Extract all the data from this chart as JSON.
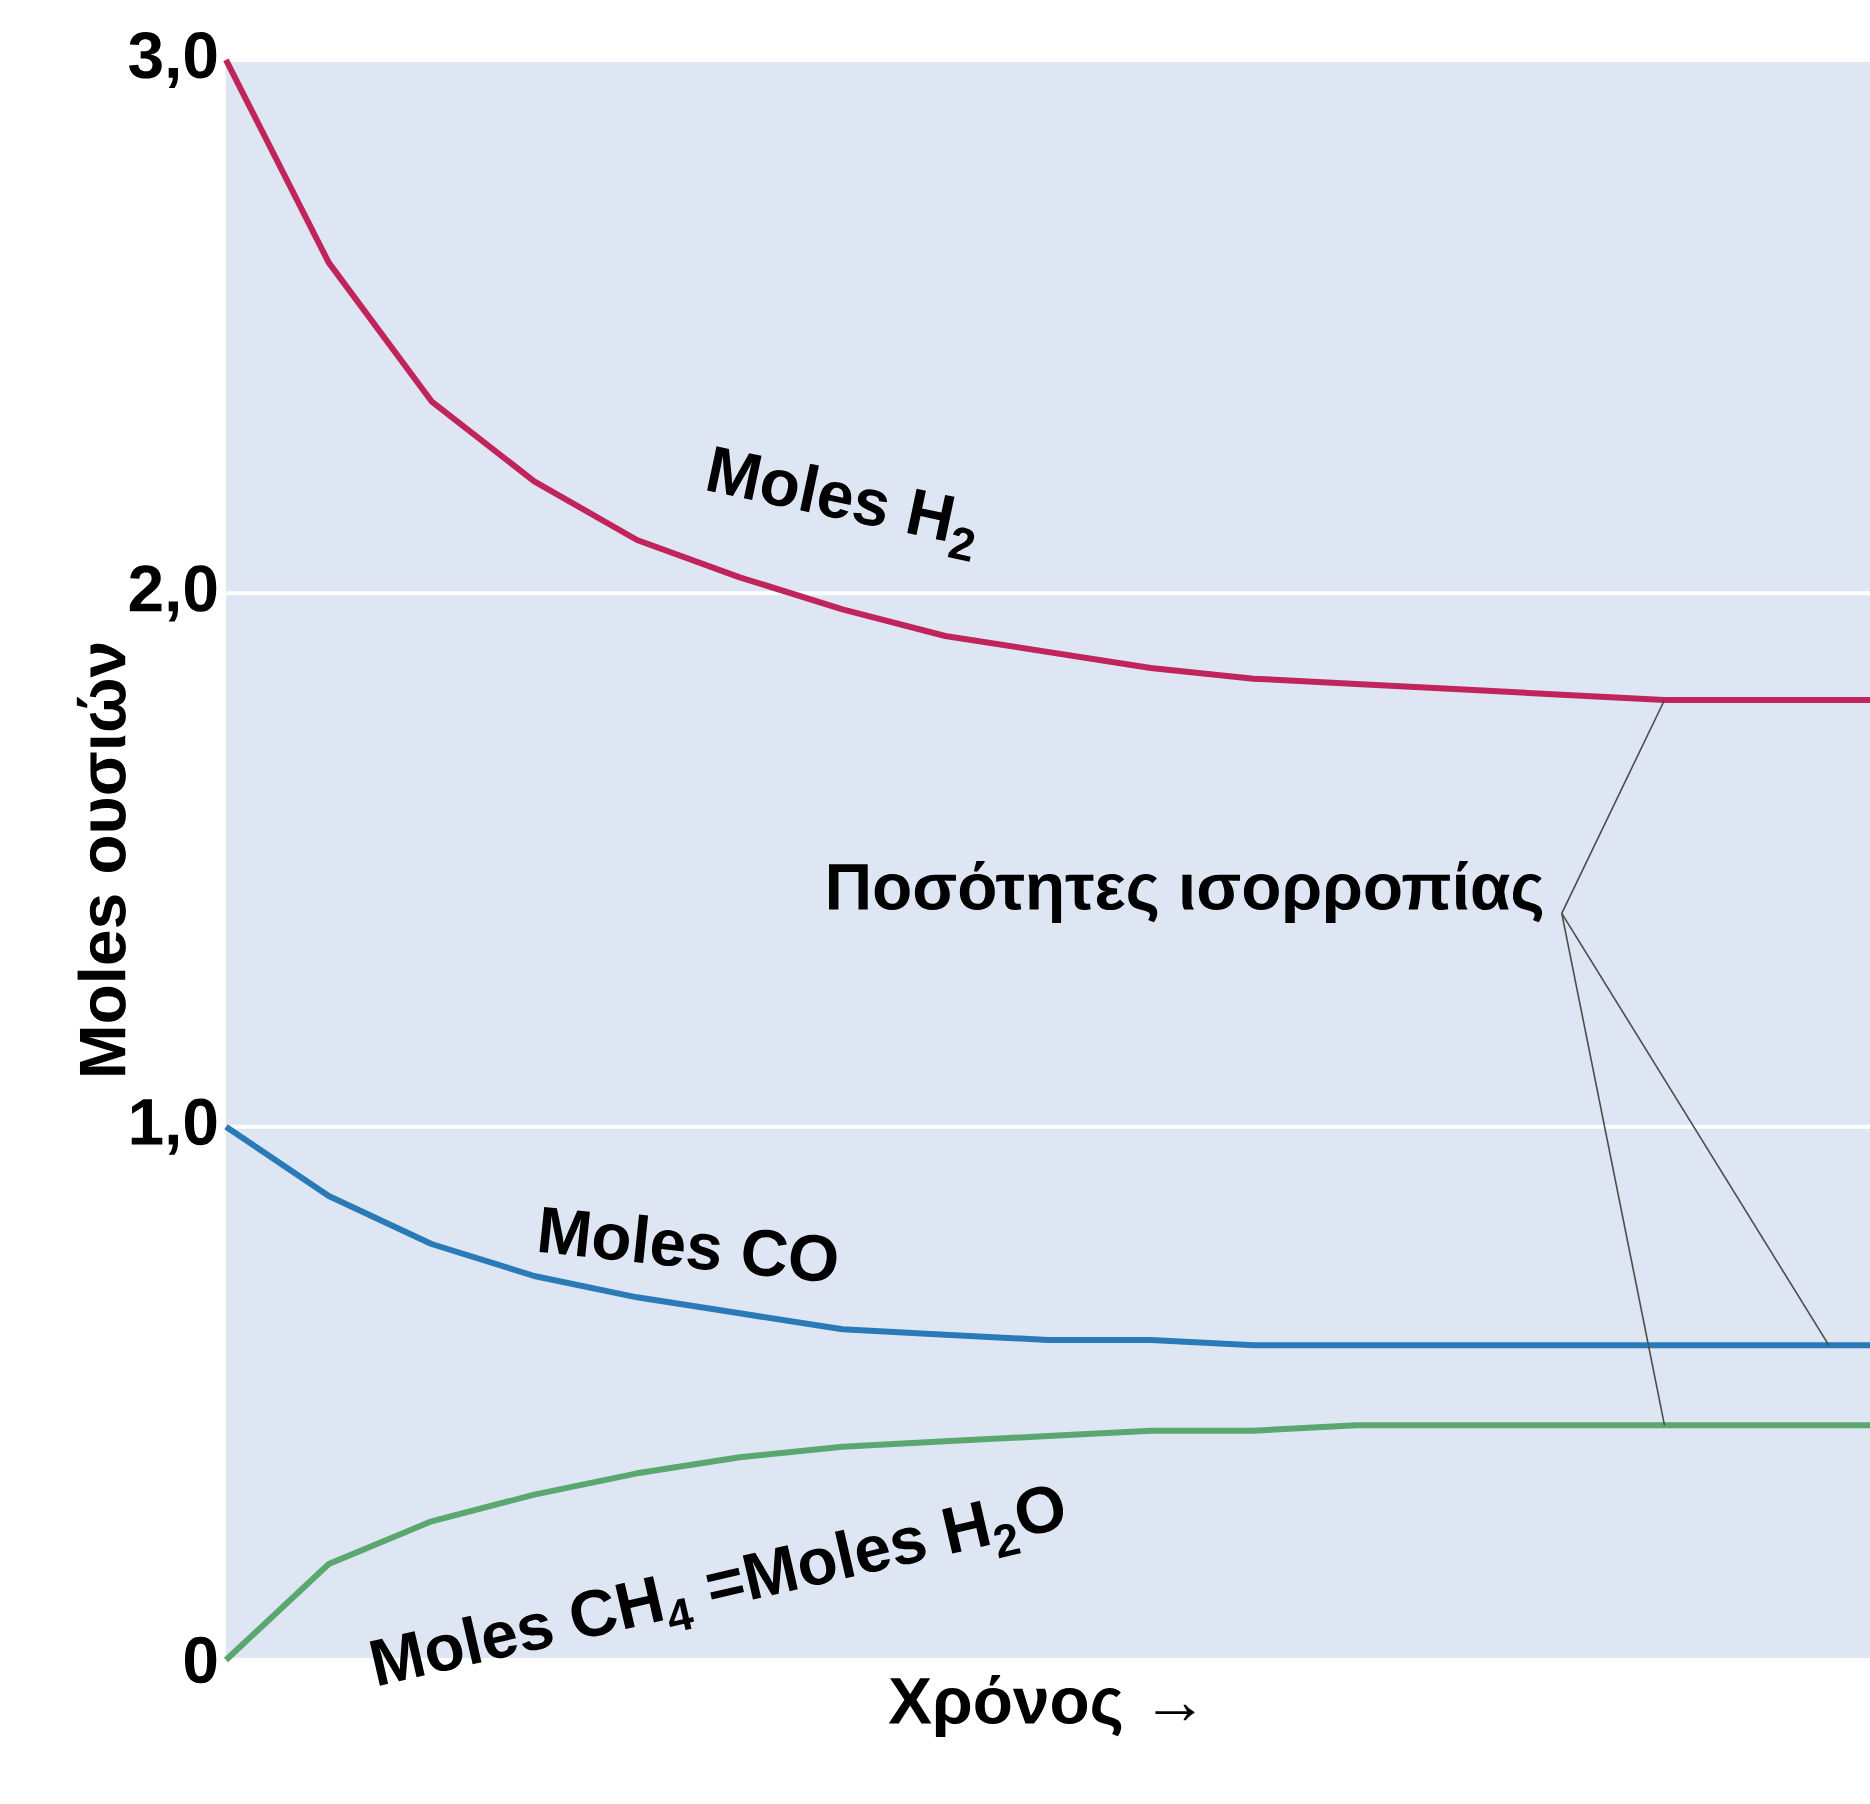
{
  "chart_data": {
    "type": "line",
    "xlabel": "Χρόνος →",
    "ylabel": "Moles ουσιών",
    "categories": [
      null,
      null,
      null,
      null,
      null,
      null,
      null,
      null,
      null,
      null,
      null,
      null,
      null,
      null,
      null,
      null,
      null
    ],
    "series": [
      {
        "name": "Moles H$_{2}$",
        "color": "#c0245a",
        "values": [
          3.0,
          2.62,
          2.36,
          2.21,
          2.1,
          2.03,
          1.97,
          1.92,
          1.89,
          1.86,
          1.84,
          1.83,
          1.82,
          1.81,
          1.8,
          1.8,
          1.8
        ]
      },
      {
        "name": "Moles CO",
        "color": "#2a7ab8",
        "values": [
          1.0,
          0.87,
          0.78,
          0.72,
          0.68,
          0.65,
          0.62,
          0.61,
          0.6,
          0.6,
          0.59,
          0.59,
          0.59,
          0.59,
          0.59,
          0.59,
          0.59
        ]
      },
      {
        "name": "Moles CH$_{4}$ =Moles H$_{2}$O",
        "color": "#5aa870",
        "values": [
          0.0,
          0.18,
          0.26,
          0.31,
          0.35,
          0.38,
          0.4,
          0.41,
          0.42,
          0.43,
          0.43,
          0.44,
          0.44,
          0.44,
          0.44,
          0.44,
          0.44
        ]
      }
    ],
    "ylim": [
      0,
      3
    ],
    "yticks": [
      0,
      {
        "value": 1,
        "label": "1,0"
      },
      {
        "value": 2,
        "label": "2,0"
      },
      {
        "value": 3,
        "label": "3,0"
      }
    ],
    "grid": "y",
    "annotations": [
      "Ποσότητες ισορροπίας"
    ]
  }
}
